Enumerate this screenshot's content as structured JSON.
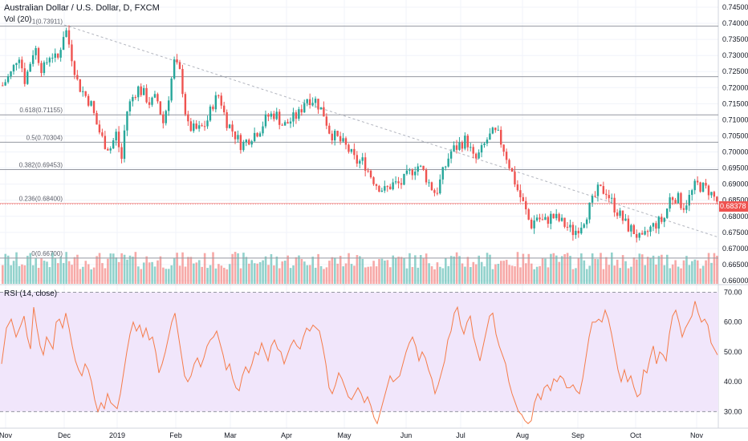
{
  "header": {
    "title": "Australian Dollar / U.S. Dollar, D, FXCM",
    "volume_label": "Vol (20)",
    "rsi_label": "RSI (14, close)",
    "last_price": "0.68378"
  },
  "colors": {
    "up": "#26a69a",
    "down": "#ef5350",
    "rsi_line": "#f57c4a",
    "rsi_band": "#f1e6fb",
    "fib_line": "#9598a1",
    "trendline": "#b2b5be"
  },
  "chart_data": [
    {
      "type": "candlestick",
      "title": "Australian Dollar / U.S. Dollar, D, FXCM",
      "x_tick_labels": [
        "Nov",
        "Dec",
        "2019",
        "Feb",
        "Mar",
        "Apr",
        "May",
        "Jun",
        "Jul",
        "Aug",
        "Sep",
        "Oct",
        "Nov"
      ],
      "y_tick_labels": [
        "0.74500",
        "0.74000",
        "0.73500",
        "0.73000",
        "0.72500",
        "0.72000",
        "0.71500",
        "0.71000",
        "0.70500",
        "0.70000",
        "0.69500",
        "0.69000",
        "0.68500",
        "0.68000",
        "0.67500",
        "0.67000",
        "0.66500",
        "0.66000"
      ],
      "ylim": [
        0.6595,
        0.7465
      ],
      "last_price": 0.68378,
      "close_path": [
        [
          0,
          0.72
        ],
        [
          14,
          0.725
        ],
        [
          22,
          0.731
        ],
        [
          30,
          0.722
        ],
        [
          42,
          0.733
        ],
        [
          52,
          0.725
        ],
        [
          62,
          0.731
        ],
        [
          70,
          0.728
        ],
        [
          80,
          0.739
        ],
        [
          88,
          0.73
        ],
        [
          96,
          0.721
        ],
        [
          104,
          0.718
        ],
        [
          112,
          0.715
        ],
        [
          120,
          0.708
        ],
        [
          128,
          0.703
        ],
        [
          136,
          0.701
        ],
        [
          144,
          0.706
        ],
        [
          150,
          0.697
        ],
        [
          156,
          0.712
        ],
        [
          162,
          0.716
        ],
        [
          170,
          0.72
        ],
        [
          178,
          0.718
        ],
        [
          186,
          0.715
        ],
        [
          194,
          0.717
        ],
        [
          202,
          0.709
        ],
        [
          208,
          0.716
        ],
        [
          216,
          0.728
        ],
        [
          224,
          0.724
        ],
        [
          232,
          0.708
        ],
        [
          240,
          0.707
        ],
        [
          248,
          0.707
        ],
        [
          256,
          0.709
        ],
        [
          264,
          0.715
        ],
        [
          272,
          0.718
        ],
        [
          280,
          0.71
        ],
        [
          290,
          0.706
        ],
        [
          300,
          0.702
        ],
        [
          312,
          0.705
        ],
        [
          322,
          0.707
        ],
        [
          332,
          0.711
        ],
        [
          342,
          0.712
        ],
        [
          352,
          0.708
        ],
        [
          362,
          0.71
        ],
        [
          372,
          0.712
        ],
        [
          380,
          0.717
        ],
        [
          392,
          0.716
        ],
        [
          402,
          0.712
        ],
        [
          410,
          0.706
        ],
        [
          420,
          0.704
        ],
        [
          432,
          0.701
        ],
        [
          442,
          0.697
        ],
        [
          452,
          0.697
        ],
        [
          460,
          0.693
        ],
        [
          468,
          0.69
        ],
        [
          478,
          0.688
        ],
        [
          488,
          0.69
        ],
        [
          498,
          0.69
        ],
        [
          508,
          0.693
        ],
        [
          518,
          0.696
        ],
        [
          526,
          0.694
        ],
        [
          534,
          0.69
        ],
        [
          542,
          0.687
        ],
        [
          550,
          0.693
        ],
        [
          560,
          0.7
        ],
        [
          570,
          0.702
        ],
        [
          580,
          0.704
        ],
        [
          590,
          0.697
        ],
        [
          598,
          0.7
        ],
        [
          606,
          0.704
        ],
        [
          614,
          0.706
        ],
        [
          620,
          0.705
        ],
        [
          628,
          0.7
        ],
        [
          636,
          0.694
        ],
        [
          644,
          0.688
        ],
        [
          652,
          0.683
        ],
        [
          660,
          0.677
        ],
        [
          668,
          0.68
        ],
        [
          676,
          0.678
        ],
        [
          686,
          0.68
        ],
        [
          694,
          0.679
        ],
        [
          704,
          0.677
        ],
        [
          714,
          0.675
        ],
        [
          724,
          0.678
        ],
        [
          734,
          0.683
        ],
        [
          744,
          0.688
        ],
        [
          754,
          0.688
        ],
        [
          764,
          0.683
        ],
        [
          772,
          0.68
        ],
        [
          780,
          0.677
        ],
        [
          790,
          0.675
        ],
        [
          798,
          0.672
        ],
        [
          808,
          0.676
        ],
        [
          818,
          0.678
        ],
        [
          826,
          0.679
        ],
        [
          834,
          0.686
        ],
        [
          842,
          0.686
        ],
        [
          850,
          0.683
        ],
        [
          858,
          0.686
        ],
        [
          866,
          0.69
        ],
        [
          874,
          0.689
        ],
        [
          882,
          0.688
        ],
        [
          888,
          0.686
        ],
        [
          894,
          0.684
        ]
      ],
      "fibonacci": [
        {
          "ratio": "1",
          "price": 0.73911,
          "label": "1(0.73911)"
        },
        {
          "ratio": "0.786",
          "price": 0.72342,
          "label": ""
        },
        {
          "ratio": "0.618",
          "price": 0.71155,
          "label": "0.618(0.71155)"
        },
        {
          "ratio": "0.5",
          "price": 0.70304,
          "label": "0.5(0.70304)"
        },
        {
          "ratio": "0.382",
          "price": 0.69453,
          "label": "0.382(0.69453)"
        },
        {
          "ratio": "0.236",
          "price": 0.684,
          "label": "0.236(0.68400)"
        },
        {
          "ratio": "0",
          "price": 0.667,
          "label": "0(0.66700)"
        }
      ],
      "trendline": {
        "from": [
          80,
          0.7395
        ],
        "to": [
          895,
          0.6735
        ]
      }
    },
    {
      "type": "bar",
      "title": "Vol (20)"
    },
    {
      "type": "line",
      "title": "RSI (14, close)",
      "y_tick_labels": [
        "70.00",
        "60.00",
        "50.00",
        "40.00",
        "30.00"
      ],
      "ylim": [
        25,
        72
      ],
      "bands": [
        30,
        70
      ],
      "points": [
        [
          2,
          46
        ],
        [
          8,
          58
        ],
        [
          14,
          61
        ],
        [
          20,
          55
        ],
        [
          26,
          59
        ],
        [
          30,
          62
        ],
        [
          34,
          55
        ],
        [
          38,
          51
        ],
        [
          42,
          65
        ],
        [
          46,
          58
        ],
        [
          50,
          52
        ],
        [
          54,
          49
        ],
        [
          58,
          55
        ],
        [
          62,
          53
        ],
        [
          66,
          51
        ],
        [
          70,
          60
        ],
        [
          74,
          61
        ],
        [
          78,
          58
        ],
        [
          82,
          63
        ],
        [
          86,
          58
        ],
        [
          90,
          52
        ],
        [
          94,
          47
        ],
        [
          98,
          44
        ],
        [
          102,
          42
        ],
        [
          106,
          46
        ],
        [
          110,
          44
        ],
        [
          114,
          40
        ],
        [
          118,
          34
        ],
        [
          122,
          30
        ],
        [
          126,
          33
        ],
        [
          130,
          31
        ],
        [
          134,
          36
        ],
        [
          138,
          33
        ],
        [
          142,
          32
        ],
        [
          146,
          31
        ],
        [
          150,
          36
        ],
        [
          154,
          43
        ],
        [
          158,
          50
        ],
        [
          162,
          56
        ],
        [
          166,
          60
        ],
        [
          170,
          57
        ],
        [
          174,
          59
        ],
        [
          178,
          55
        ],
        [
          182,
          58
        ],
        [
          186,
          54
        ],
        [
          190,
          55
        ],
        [
          194,
          50
        ],
        [
          198,
          43
        ],
        [
          202,
          46
        ],
        [
          206,
          50
        ],
        [
          210,
          55
        ],
        [
          214,
          60
        ],
        [
          218,
          63
        ],
        [
          222,
          56
        ],
        [
          226,
          49
        ],
        [
          230,
          42
        ],
        [
          234,
          40
        ],
        [
          238,
          42
        ],
        [
          242,
          46
        ],
        [
          246,
          48
        ],
        [
          250,
          45
        ],
        [
          254,
          48
        ],
        [
          258,
          52
        ],
        [
          262,
          54
        ],
        [
          266,
          55
        ],
        [
          270,
          57
        ],
        [
          274,
          53
        ],
        [
          278,
          49
        ],
        [
          282,
          44
        ],
        [
          286,
          46
        ],
        [
          290,
          41
        ],
        [
          294,
          38
        ],
        [
          298,
          37
        ],
        [
          302,
          42
        ],
        [
          306,
          45
        ],
        [
          310,
          43
        ],
        [
          314,
          46
        ],
        [
          318,
          50
        ],
        [
          322,
          49
        ],
        [
          326,
          53
        ],
        [
          330,
          50
        ],
        [
          334,
          47
        ],
        [
          338,
          52
        ],
        [
          342,
          54
        ],
        [
          346,
          51
        ],
        [
          350,
          50
        ],
        [
          354,
          46
        ],
        [
          358,
          49
        ],
        [
          362,
          52
        ],
        [
          366,
          54
        ],
        [
          370,
          52
        ],
        [
          374,
          51
        ],
        [
          378,
          55
        ],
        [
          382,
          58
        ],
        [
          386,
          57
        ],
        [
          390,
          59
        ],
        [
          394,
          58
        ],
        [
          398,
          57
        ],
        [
          402,
          52
        ],
        [
          406,
          46
        ],
        [
          410,
          38
        ],
        [
          414,
          36
        ],
        [
          418,
          39
        ],
        [
          422,
          43
        ],
        [
          426,
          41
        ],
        [
          430,
          38
        ],
        [
          434,
          35
        ],
        [
          438,
          34
        ],
        [
          442,
          36
        ],
        [
          446,
          38
        ],
        [
          450,
          36
        ],
        [
          454,
          33
        ],
        [
          458,
          35
        ],
        [
          462,
          32
        ],
        [
          466,
          28
        ],
        [
          470,
          26
        ],
        [
          474,
          30
        ],
        [
          478,
          34
        ],
        [
          482,
          38
        ],
        [
          486,
          42
        ],
        [
          490,
          40
        ],
        [
          494,
          41
        ],
        [
          498,
          42
        ],
        [
          502,
          46
        ],
        [
          506,
          50
        ],
        [
          510,
          53
        ],
        [
          514,
          55
        ],
        [
          518,
          52
        ],
        [
          522,
          47
        ],
        [
          526,
          50
        ],
        [
          530,
          48
        ],
        [
          534,
          44
        ],
        [
          538,
          41
        ],
        [
          542,
          36
        ],
        [
          546,
          39
        ],
        [
          550,
          43
        ],
        [
          554,
          47
        ],
        [
          558,
          54
        ],
        [
          562,
          57
        ],
        [
          566,
          63
        ],
        [
          570,
          65
        ],
        [
          574,
          59
        ],
        [
          578,
          56
        ],
        [
          582,
          60
        ],
        [
          586,
          62
        ],
        [
          590,
          55
        ],
        [
          594,
          51
        ],
        [
          598,
          47
        ],
        [
          602,
          52
        ],
        [
          606,
          57
        ],
        [
          610,
          62
        ],
        [
          614,
          63
        ],
        [
          618,
          56
        ],
        [
          622,
          52
        ],
        [
          626,
          49
        ],
        [
          630,
          46
        ],
        [
          634,
          40
        ],
        [
          638,
          36
        ],
        [
          642,
          33
        ],
        [
          646,
          30
        ],
        [
          650,
          29
        ],
        [
          654,
          27
        ],
        [
          658,
          26
        ],
        [
          662,
          27
        ],
        [
          666,
          33
        ],
        [
          670,
          36
        ],
        [
          674,
          34
        ],
        [
          678,
          38
        ],
        [
          682,
          39
        ],
        [
          686,
          37
        ],
        [
          690,
          41
        ],
        [
          694,
          40
        ],
        [
          698,
          42
        ],
        [
          702,
          41
        ],
        [
          706,
          38
        ],
        [
          710,
          38
        ],
        [
          714,
          39
        ],
        [
          718,
          37
        ],
        [
          722,
          36
        ],
        [
          726,
          41
        ],
        [
          730,
          48
        ],
        [
          734,
          55
        ],
        [
          738,
          60
        ],
        [
          742,
          60
        ],
        [
          746,
          61
        ],
        [
          750,
          60
        ],
        [
          754,
          64
        ],
        [
          758,
          61
        ],
        [
          762,
          56
        ],
        [
          766,
          50
        ],
        [
          770,
          44
        ],
        [
          774,
          40
        ],
        [
          778,
          44
        ],
        [
          782,
          40
        ],
        [
          786,
          42
        ],
        [
          790,
          38
        ],
        [
          794,
          35
        ],
        [
          798,
          36
        ],
        [
          802,
          44
        ],
        [
          806,
          43
        ],
        [
          810,
          48
        ],
        [
          814,
          52
        ],
        [
          818,
          46
        ],
        [
          822,
          50
        ],
        [
          826,
          49
        ],
        [
          830,
          47
        ],
        [
          834,
          56
        ],
        [
          838,
          62
        ],
        [
          842,
          64
        ],
        [
          846,
          60
        ],
        [
          850,
          55
        ],
        [
          854,
          58
        ],
        [
          858,
          60
        ],
        [
          862,
          62
        ],
        [
          866,
          67
        ],
        [
          870,
          63
        ],
        [
          874,
          60
        ],
        [
          878,
          61
        ],
        [
          882,
          59
        ],
        [
          886,
          53
        ],
        [
          890,
          51
        ],
        [
          894,
          49
        ]
      ]
    }
  ]
}
